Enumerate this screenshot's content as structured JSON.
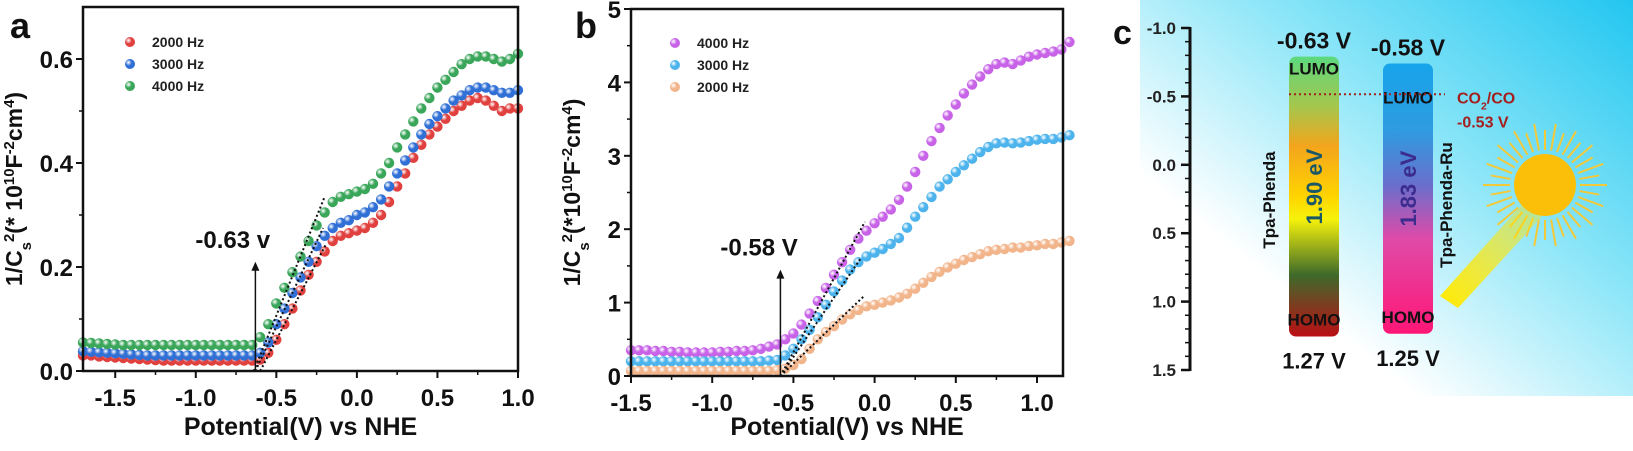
{
  "chart_data": [
    {
      "panel_label": "a",
      "type": "scatter",
      "xlabel": "Potential(V) vs NHE",
      "ylabel_parts": [
        {
          "t": "1/C",
          "s": ""
        },
        {
          "t": "s",
          "s": "sub"
        },
        {
          "t": "2",
          "s": "sup"
        },
        {
          "t": "(* 10",
          "s": ""
        },
        {
          "t": "10",
          "s": "sup"
        },
        {
          "t": "F",
          "s": ""
        },
        {
          "t": "-2",
          "s": "sup"
        },
        {
          "t": "cm",
          "s": ""
        },
        {
          "t": "4",
          "s": "sup"
        },
        {
          "t": ")",
          "s": ""
        }
      ],
      "xlim": [
        -1.7,
        1.0
      ],
      "ylim": [
        0,
        0.7
      ],
      "xticks": [
        -1.5,
        -1.0,
        -0.5,
        0.0,
        0.5,
        1.0
      ],
      "xtick_labels": [
        "-1.5",
        "-1.0",
        "-0.5",
        "0.0",
        "0.5",
        "1.0"
      ],
      "yticks": [
        0.0,
        0.2,
        0.4,
        0.6
      ],
      "ytick_labels": [
        "0.0",
        "0.2",
        "0.4",
        "0.6"
      ],
      "legend_position": "top-left",
      "x": [
        -1.7,
        -1.65,
        -1.6,
        -1.55,
        -1.5,
        -1.45,
        -1.4,
        -1.35,
        -1.3,
        -1.25,
        -1.2,
        -1.15,
        -1.1,
        -1.05,
        -1.0,
        -0.95,
        -0.9,
        -0.85,
        -0.8,
        -0.75,
        -0.7,
        -0.65,
        -0.6,
        -0.55,
        -0.5,
        -0.45,
        -0.4,
        -0.35,
        -0.3,
        -0.25,
        -0.2,
        -0.15,
        -0.1,
        -0.05,
        0.0,
        0.05,
        0.1,
        0.15,
        0.2,
        0.25,
        0.3,
        0.35,
        0.4,
        0.45,
        0.5,
        0.55,
        0.6,
        0.65,
        0.7,
        0.75,
        0.8,
        0.85,
        0.9,
        0.95,
        1.0
      ],
      "series": [
        {
          "name": "2000 Hz",
          "color": "#e0413f",
          "values": [
            0.03,
            0.03,
            0.028,
            0.027,
            0.026,
            0.025,
            0.024,
            0.023,
            0.022,
            0.021,
            0.02,
            0.02,
            0.02,
            0.02,
            0.02,
            0.02,
            0.02,
            0.02,
            0.02,
            0.02,
            0.02,
            0.02,
            0.022,
            0.035,
            0.06,
            0.09,
            0.12,
            0.155,
            0.185,
            0.21,
            0.23,
            0.25,
            0.26,
            0.265,
            0.27,
            0.275,
            0.285,
            0.3,
            0.325,
            0.355,
            0.38,
            0.41,
            0.435,
            0.455,
            0.47,
            0.485,
            0.5,
            0.51,
            0.52,
            0.525,
            0.52,
            0.51,
            0.5,
            0.505,
            0.505
          ]
        },
        {
          "name": "3000 Hz",
          "color": "#2f6fd6",
          "values": [
            0.038,
            0.037,
            0.036,
            0.035,
            0.034,
            0.033,
            0.032,
            0.031,
            0.03,
            0.03,
            0.03,
            0.03,
            0.03,
            0.03,
            0.03,
            0.03,
            0.03,
            0.03,
            0.03,
            0.03,
            0.03,
            0.03,
            0.035,
            0.055,
            0.09,
            0.12,
            0.15,
            0.18,
            0.21,
            0.24,
            0.26,
            0.275,
            0.285,
            0.29,
            0.3,
            0.305,
            0.315,
            0.33,
            0.355,
            0.38,
            0.405,
            0.43,
            0.455,
            0.475,
            0.49,
            0.505,
            0.52,
            0.53,
            0.54,
            0.545,
            0.545,
            0.54,
            0.535,
            0.535,
            0.54
          ]
        },
        {
          "name": "4000 Hz",
          "color": "#3aa65a",
          "values": [
            0.055,
            0.054,
            0.053,
            0.052,
            0.051,
            0.05,
            0.05,
            0.05,
            0.05,
            0.05,
            0.05,
            0.05,
            0.05,
            0.05,
            0.05,
            0.05,
            0.05,
            0.05,
            0.05,
            0.05,
            0.05,
            0.05,
            0.065,
            0.09,
            0.13,
            0.16,
            0.19,
            0.22,
            0.25,
            0.28,
            0.305,
            0.325,
            0.335,
            0.34,
            0.345,
            0.35,
            0.36,
            0.38,
            0.4,
            0.43,
            0.455,
            0.48,
            0.505,
            0.525,
            0.545,
            0.56,
            0.575,
            0.59,
            0.6,
            0.605,
            0.605,
            0.6,
            0.595,
            0.6,
            0.61
          ]
        }
      ],
      "legend_order": [
        0,
        1,
        2
      ],
      "fit_lines": [
        {
          "from": [
            -0.64,
            0.0
          ],
          "to": [
            -0.2,
            0.335
          ]
        },
        {
          "from": [
            -0.63,
            0.0
          ],
          "to": [
            -0.21,
            0.275
          ]
        },
        {
          "from": [
            -0.6,
            0.0
          ],
          "to": [
            -0.19,
            0.245
          ]
        }
      ],
      "annotation": {
        "text": "-0.63 v",
        "x": -0.63,
        "arrow_top": 0.21
      }
    },
    {
      "panel_label": "b",
      "type": "scatter",
      "xlabel": "Potential(V) vs NHE",
      "ylabel_parts": [
        {
          "t": "1/C",
          "s": ""
        },
        {
          "t": "s",
          "s": "sub"
        },
        {
          "t": "2",
          "s": "sup"
        },
        {
          "t": "(*10",
          "s": ""
        },
        {
          "t": "10",
          "s": "sup"
        },
        {
          "t": "F",
          "s": ""
        },
        {
          "t": "-2",
          "s": "sup"
        },
        {
          "t": "cm",
          "s": ""
        },
        {
          "t": "4",
          "s": "sup"
        },
        {
          "t": ")",
          "s": ""
        }
      ],
      "xlim": [
        -1.5,
        1.16
      ],
      "ylim": [
        0,
        5
      ],
      "xticks": [
        -1.5,
        -1.0,
        -0.5,
        0.0,
        0.5,
        1.0
      ],
      "xtick_labels": [
        "-1.5",
        "-1.0",
        "-0.5",
        "0.0",
        "0.5",
        "1.0"
      ],
      "yticks": [
        0,
        1,
        2,
        3,
        4,
        5
      ],
      "ytick_labels": [
        "0",
        "1",
        "2",
        "3",
        "4",
        "5"
      ],
      "legend_position": "top-left",
      "x": [
        -1.5,
        -1.45,
        -1.4,
        -1.35,
        -1.3,
        -1.25,
        -1.2,
        -1.15,
        -1.1,
        -1.05,
        -1.0,
        -0.95,
        -0.9,
        -0.85,
        -0.8,
        -0.75,
        -0.7,
        -0.65,
        -0.6,
        -0.55,
        -0.5,
        -0.45,
        -0.4,
        -0.35,
        -0.3,
        -0.25,
        -0.2,
        -0.15,
        -0.1,
        -0.05,
        0.0,
        0.05,
        0.1,
        0.15,
        0.2,
        0.25,
        0.3,
        0.35,
        0.4,
        0.45,
        0.5,
        0.55,
        0.6,
        0.65,
        0.7,
        0.75,
        0.8,
        0.85,
        0.9,
        0.95,
        1.0,
        1.05,
        1.1,
        1.15,
        1.2
      ],
      "series": [
        {
          "name": "4000 Hz",
          "color": "#c863e8",
          "values": [
            0.35,
            0.35,
            0.35,
            0.34,
            0.34,
            0.33,
            0.33,
            0.32,
            0.32,
            0.32,
            0.32,
            0.33,
            0.33,
            0.34,
            0.34,
            0.35,
            0.37,
            0.4,
            0.43,
            0.5,
            0.58,
            0.7,
            0.85,
            1.02,
            1.2,
            1.38,
            1.55,
            1.72,
            1.87,
            1.98,
            2.08,
            2.17,
            2.27,
            2.4,
            2.58,
            2.78,
            3.0,
            3.2,
            3.38,
            3.55,
            3.7,
            3.85,
            3.97,
            4.08,
            4.18,
            4.25,
            4.27,
            4.25,
            4.3,
            4.35,
            4.38,
            4.4,
            4.42,
            4.45,
            4.55
          ]
        },
        {
          "name": "3000 Hz",
          "color": "#4cb3ec",
          "values": [
            0.2,
            0.2,
            0.2,
            0.2,
            0.2,
            0.2,
            0.2,
            0.2,
            0.2,
            0.2,
            0.2,
            0.2,
            0.2,
            0.2,
            0.2,
            0.2,
            0.2,
            0.21,
            0.22,
            0.28,
            0.37,
            0.5,
            0.63,
            0.8,
            0.97,
            1.15,
            1.3,
            1.45,
            1.55,
            1.63,
            1.68,
            1.73,
            1.8,
            1.88,
            2.02,
            2.17,
            2.3,
            2.44,
            2.58,
            2.68,
            2.78,
            2.87,
            2.96,
            3.05,
            3.12,
            3.17,
            3.18,
            3.17,
            3.18,
            3.2,
            3.22,
            3.23,
            3.23,
            3.25,
            3.28
          ]
        },
        {
          "name": "2000 Hz",
          "color": "#f2b48a",
          "values": [
            0.07,
            0.07,
            0.07,
            0.07,
            0.07,
            0.07,
            0.07,
            0.07,
            0.07,
            0.07,
            0.07,
            0.07,
            0.07,
            0.07,
            0.07,
            0.07,
            0.07,
            0.07,
            0.08,
            0.1,
            0.15,
            0.23,
            0.37,
            0.5,
            0.6,
            0.68,
            0.77,
            0.84,
            0.9,
            0.95,
            0.97,
            1.0,
            1.03,
            1.07,
            1.12,
            1.19,
            1.27,
            1.35,
            1.42,
            1.48,
            1.53,
            1.58,
            1.62,
            1.66,
            1.7,
            1.72,
            1.73,
            1.75,
            1.75,
            1.77,
            1.78,
            1.8,
            1.8,
            1.82,
            1.84
          ]
        }
      ],
      "legend_order": [
        0,
        1,
        2
      ],
      "fit_lines": [
        {
          "from": [
            -0.58,
            0.0
          ],
          "to": [
            -0.06,
            2.1
          ]
        },
        {
          "from": [
            -0.58,
            0.0
          ],
          "to": [
            -0.08,
            1.62
          ]
        },
        {
          "from": [
            -0.58,
            0.0
          ],
          "to": [
            -0.06,
            1.1
          ]
        }
      ],
      "annotation": {
        "text": "-0.58 V",
        "x": -0.58,
        "arrow_top": 1.45
      }
    },
    {
      "panel_label": "c",
      "type": "band-diagram",
      "ylim": [
        -1.0,
        1.5
      ],
      "yticks": [
        -1.0,
        -0.5,
        0.0,
        0.5,
        1.0,
        1.5
      ],
      "ytick_labels": [
        "-1.0",
        "-0.5",
        "0.0",
        "0.5",
        "1.0",
        "1.5"
      ],
      "materials": [
        {
          "name": "Tpa-Phenda",
          "lumo": -0.63,
          "homo": 1.27,
          "lumo_label": "-0.63 V",
          "homo_label": "1.27 V",
          "gap_label": "1.90 eV",
          "lumo_text": "LUMO",
          "homo_text": "HOMO"
        },
        {
          "name": "Tpa-Phenda-Ru",
          "lumo": -0.58,
          "homo": 1.25,
          "lumo_label": "-0.58 V",
          "homo_label": "1.25 V",
          "gap_label": "1.83 eV",
          "lumo_text": "LUMO",
          "homo_text": "HOMO"
        }
      ],
      "reference": {
        "label_main": "CO",
        "label_sub": "2",
        "label_rest": "/CO",
        "value": -0.53,
        "value_label": "-0.53 V",
        "color": "#a3201e"
      }
    }
  ]
}
